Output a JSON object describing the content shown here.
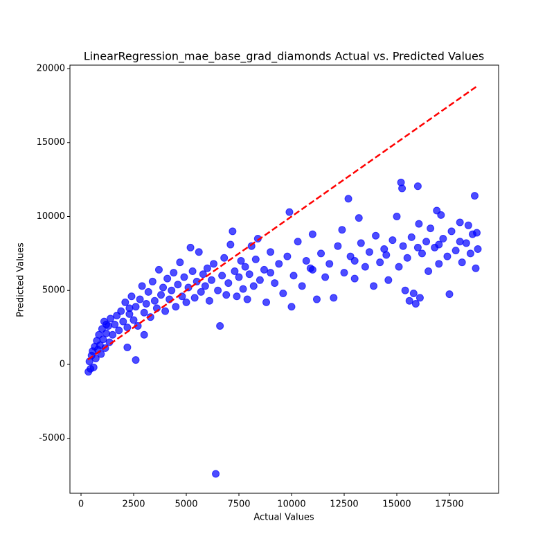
{
  "chart_data": {
    "type": "scatter",
    "title": "LinearRegression_mae_base_grad_diamonds Actual vs. Predicted Values",
    "x_label": "Actual Values",
    "y_label": "Predicted Values",
    "color": "#0000ff",
    "x": [
      350,
      400,
      450,
      500,
      550,
      600,
      650,
      700,
      750,
      800,
      850,
      900,
      950,
      1000,
      1050,
      1100,
      1150,
      1200,
      1300,
      1350,
      1400,
      1500,
      1600,
      1700,
      1800,
      1900,
      2000,
      2100,
      2200,
      2300,
      2400,
      2500,
      2600,
      2700,
      2800,
      2900,
      3000,
      3100,
      3200,
      3300,
      3400,
      3500,
      3600,
      3700,
      3800,
      3900,
      4000,
      4100,
      4200,
      4300,
      4400,
      4500,
      4600,
      4700,
      4800,
      4900,
      5000,
      5100,
      5200,
      5300,
      5400,
      5500,
      5600,
      5700,
      5800,
      5900,
      6000,
      6100,
      6200,
      6300,
      6400,
      6500,
      6600,
      6700,
      6800,
      6900,
      7000,
      7100,
      7200,
      7300,
      7400,
      7500,
      7600,
      7700,
      7800,
      7900,
      8000,
      8100,
      8200,
      8300,
      8400,
      8500,
      8700,
      8800,
      9000,
      9200,
      9400,
      9600,
      9800,
      9900,
      10000,
      10100,
      10300,
      10500,
      10700,
      10900,
      11000,
      11200,
      11400,
      11600,
      11800,
      12000,
      12200,
      12400,
      12500,
      12700,
      12800,
      13000,
      13200,
      13300,
      13500,
      13700,
      13900,
      14000,
      14200,
      14400,
      14600,
      14800,
      15000,
      15100,
      15200,
      15250,
      15300,
      15400,
      15500,
      15600,
      15700,
      15800,
      15900,
      16000,
      16050,
      16100,
      16200,
      16400,
      16500,
      16600,
      16800,
      16900,
      17000,
      17100,
      17200,
      17400,
      17500,
      17600,
      17800,
      18000,
      18100,
      18300,
      18400,
      18500,
      18600,
      18700,
      18750,
      18800,
      18850,
      2300,
      2200,
      3000,
      1200,
      2600,
      9000,
      11000,
      13000,
      14500,
      16000,
      17000,
      18000
    ],
    "values": [
      -500,
      200,
      -300,
      600,
      900,
      -200,
      1200,
      400,
      1600,
      1000,
      2000,
      1300,
      700,
      2400,
      1700,
      2900,
      1100,
      2100,
      2600,
      1500,
      3100,
      2000,
      2700,
      3300,
      2300,
      3600,
      2900,
      4200,
      2500,
      3400,
      4600,
      3000,
      3900,
      2600,
      4400,
      5300,
      3500,
      4100,
      4900,
      3200,
      5600,
      4300,
      3800,
      6400,
      4700,
      5200,
      3600,
      5800,
      4400,
      5000,
      6200,
      3900,
      5400,
      6900,
      4600,
      5900,
      4200,
      5200,
      7900,
      6300,
      4500,
      5600,
      7600,
      4900,
      6100,
      5300,
      6500,
      4300,
      5700,
      6800,
      -7400,
      5000,
      2600,
      6000,
      7200,
      4700,
      5500,
      8100,
      9000,
      6300,
      4600,
      5900,
      7000,
      5100,
      6600,
      4400,
      6100,
      8000,
      5300,
      7100,
      8500,
      5700,
      6400,
      4200,
      7600,
      5500,
      6800,
      4800,
      7300,
      10300,
      3900,
      6000,
      8300,
      5300,
      7000,
      6500,
      8800,
      4400,
      7500,
      5900,
      6800,
      4500,
      8000,
      9100,
      6200,
      11200,
      7300,
      5800,
      9900,
      8200,
      6600,
      7600,
      5300,
      8700,
      6900,
      7800,
      5700,
      8400,
      10000,
      6600,
      12300,
      11900,
      8000,
      5000,
      7200,
      4300,
      8600,
      4800,
      4100,
      12050,
      9500,
      4500,
      7500,
      8300,
      6300,
      9200,
      7900,
      10400,
      6800,
      10100,
      8500,
      7300,
      4750,
      9000,
      7700,
      9600,
      6900,
      8200,
      9400,
      7500,
      8800,
      11400,
      6500,
      8900,
      7800,
      3800,
      1150,
      2000,
      2700,
      300,
      6200,
      6400,
      7000,
      7400,
      7900,
      8100,
      8300
    ],
    "reference_line": {
      "x": [
        326,
        18823
      ],
      "y": [
        326,
        18823
      ],
      "color": "#ff0000"
    },
    "xlim": [
      -526,
      19836
    ],
    "ylim": [
      -8712,
      20234
    ],
    "xticks": [
      0,
      2500,
      5000,
      7500,
      10000,
      12500,
      15000,
      17500
    ],
    "yticks": [
      -5000,
      0,
      5000,
      10000,
      15000,
      20000
    ]
  }
}
